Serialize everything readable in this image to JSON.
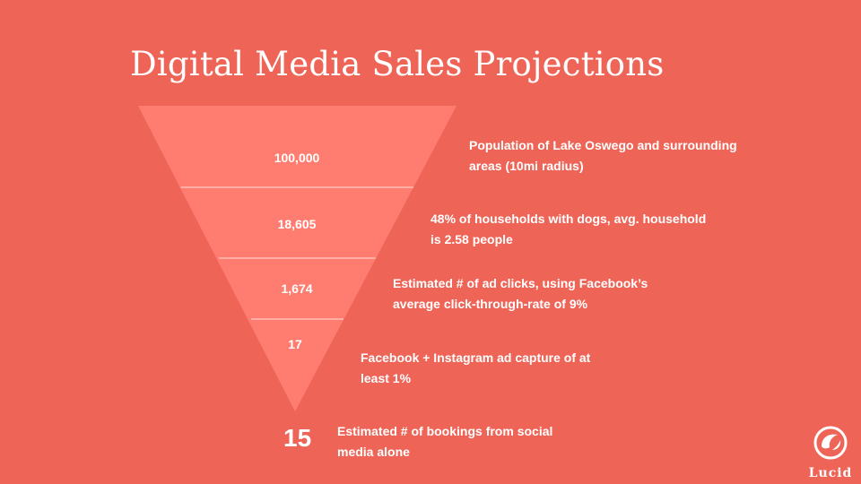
{
  "title": "Digital Media Sales Projections",
  "funnel": {
    "stages": [
      {
        "value": "100,000",
        "description_lines": [
          "Population of Lake Oswego and surrounding",
          "areas (10mi radius)"
        ]
      },
      {
        "value": "18,605",
        "description_lines": [
          "48% of households with dogs, avg. household",
          "is 2.58 people"
        ]
      },
      {
        "value": "1,674",
        "description_lines": [
          "Estimated # of ad clicks, using Facebook’s",
          "average click-through-rate of 9%"
        ]
      },
      {
        "value": "17",
        "description_lines": [
          "Facebook + Instagram ad capture of at",
          "least 1%"
        ]
      }
    ],
    "result": {
      "value": "15",
      "description_lines": [
        "Estimated # of bookings from social",
        "media alone"
      ]
    }
  },
  "logo": {
    "text": "Lucid",
    "icon": "lucid-logo-icon"
  },
  "colors": {
    "background": "#EE6558",
    "funnel_fill": "#FF7D70",
    "text": "#FFFFFF",
    "divider": "#FFE0DC"
  }
}
